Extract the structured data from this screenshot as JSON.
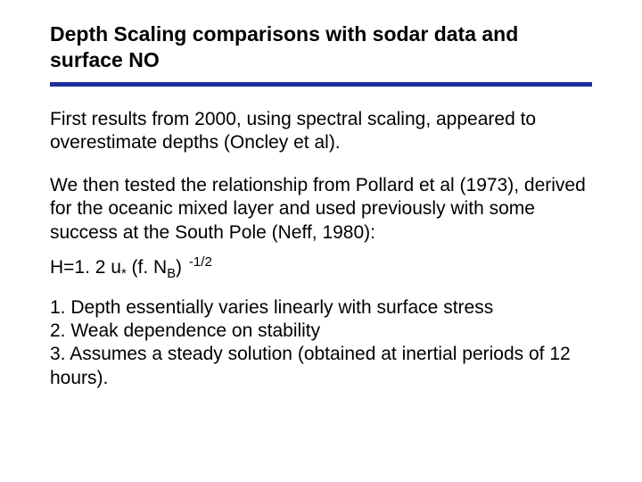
{
  "title": "Depth Scaling comparisons with sodar data and surface NO",
  "rule_color": "#1f2f9e",
  "para1": "First results from 2000, using spectral scaling, appeared to overestimate depths (Oncley et al).",
  "para2": "We then tested the relationship from Pollard et al (1973), derived for the oceanic mixed layer and used previously with some success at the South Pole (Neff, 1980):",
  "formula": {
    "prefix": "H=1. 2 u",
    "sub1": "*",
    "mid": " (f. N",
    "sub2": "B",
    "close": ") ",
    "sup": "-1/2"
  },
  "list": {
    "i1": "1. Depth essentially varies linearly with surface stress",
    "i2": "2. Weak dependence on stability",
    "i3": "3. Assumes a steady solution (obtained at inertial periods of 12 hours)."
  }
}
